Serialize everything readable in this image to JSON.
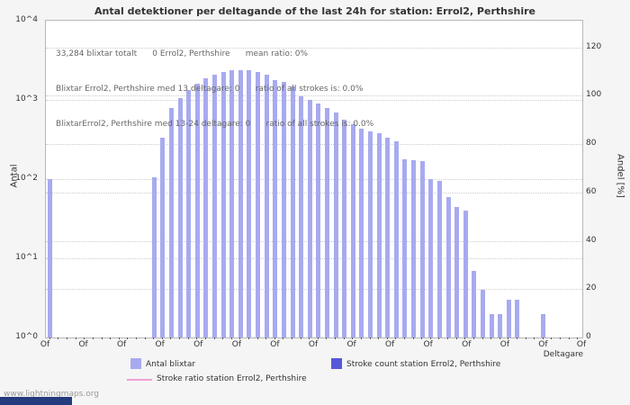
{
  "title": "Antal detektioner per deltagande of the last 24h for station: Errol2, Perthshire",
  "annotations": [
    "33,284 blixtar totalt      0 Errol2, Perthshire      mean ratio: 0%",
    "Blixtar Errol2, Perthshire med 13 deltagare: 0      ratio of all strokes is: 0.0%",
    "BlixtarErrol2, Perthshire med 13-24 deltagare: 0      ratio of all strokes is: 0.0%"
  ],
  "watermark": "www.lightningmaps.org",
  "colors": {
    "bar": "#a8aaf0",
    "stroke_count": "#5757d9",
    "stroke_ratio": "#f2a0d5",
    "grid": "#cccccc",
    "footer_banner": "#233b7d"
  },
  "legend": {
    "items": [
      {
        "label": "Antal blixtar",
        "swatch": "box",
        "color": "#a8aaf0"
      },
      {
        "label": "Stroke count station Errol2, Perthshire",
        "swatch": "box",
        "color": "#5757d9"
      },
      {
        "label": "Stroke ratio station Errol2, Perthshire",
        "swatch": "line",
        "color": "#f2a0d5"
      }
    ]
  },
  "chart_data": {
    "type": "bar",
    "title": "Antal detektioner per deltagande of the last 24h for station: Errol2, Perthshire",
    "x_axis_label": "Deltagare",
    "y_axis_label_left": "Antal",
    "y_axis_label_right": "Andel [%]",
    "y_left_scale": "log",
    "y_left_range": [
      1,
      10000
    ],
    "y_left_ticks": [
      "10^4",
      "10^3",
      "10^2",
      "10^1",
      "10^0"
    ],
    "y_right_ticks": [
      "120",
      "100",
      "80",
      "60",
      "40",
      "20",
      "0"
    ],
    "y_right_values": [
      120,
      100,
      80,
      60,
      40,
      20,
      0
    ],
    "y_right_max": 131,
    "grid_left_values": [
      1000,
      100,
      10
    ],
    "grid_on": true,
    "legend_position": "bottom",
    "x_tick_labels": [
      "Of",
      "Of",
      "Of",
      "Of",
      "Of",
      "Of",
      "Of",
      "Of",
      "Of",
      "Of",
      "Of",
      "Of",
      "Of",
      "Of",
      "Of"
    ],
    "x_start": 0,
    "x_step": 1,
    "values": [
      100,
      0,
      0,
      0,
      0,
      0,
      0,
      0,
      0,
      0,
      0,
      0,
      105,
      330,
      800,
      1050,
      1350,
      1600,
      1900,
      2100,
      2250,
      2350,
      2400,
      2350,
      2250,
      2100,
      1800,
      1700,
      1500,
      1100,
      1000,
      900,
      800,
      700,
      560,
      500,
      430,
      400,
      380,
      330,
      300,
      180,
      175,
      170,
      100,
      95,
      60,
      45,
      40,
      7,
      4,
      2,
      2,
      3,
      3,
      0,
      0,
      2,
      0,
      0,
      0,
      0
    ],
    "series": [
      {
        "name": "Antal blixtar",
        "type": "bar"
      },
      {
        "name": "Stroke count station Errol2, Perthshire",
        "type": "bar",
        "values_all_zero": true
      },
      {
        "name": "Stroke ratio station Errol2, Perthshire",
        "type": "line",
        "values_all_zero": true
      }
    ]
  }
}
